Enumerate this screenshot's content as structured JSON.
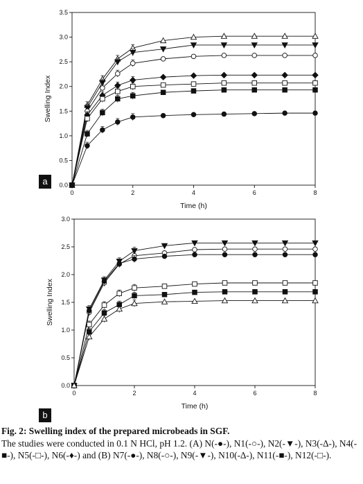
{
  "chart_data": [
    {
      "type": "line",
      "panel_label": "a",
      "xlabel": "Time (h)",
      "ylabel": "Swelling Index",
      "xlim": [
        0,
        8
      ],
      "ylim": [
        0,
        3.5
      ],
      "xticks": [
        "0",
        "2",
        "4",
        "6",
        "8"
      ],
      "yticks": [
        "0.0",
        "0.5",
        "1.0",
        "1.5",
        "2.0",
        "2.5",
        "3.0",
        "3.5"
      ],
      "x": [
        0,
        0.5,
        1,
        1.5,
        2,
        3,
        4,
        5,
        6,
        7,
        8
      ],
      "grid": false,
      "series": [
        {
          "marker": "triangle-open",
          "values": [
            0,
            1.62,
            2.15,
            2.56,
            2.78,
            2.93,
            3.0,
            3.02,
            3.02,
            3.02,
            3.02
          ]
        },
        {
          "marker": "triangle-down-filled",
          "values": [
            0,
            1.57,
            2.08,
            2.5,
            2.69,
            2.76,
            2.84,
            2.84,
            2.84,
            2.84,
            2.84
          ]
        },
        {
          "marker": "circle-open",
          "values": [
            0,
            1.5,
            1.97,
            2.26,
            2.47,
            2.56,
            2.61,
            2.63,
            2.63,
            2.63,
            2.63
          ]
        },
        {
          "marker": "diamond-filled",
          "values": [
            0,
            1.42,
            1.82,
            2.02,
            2.13,
            2.19,
            2.22,
            2.23,
            2.23,
            2.23,
            2.23
          ]
        },
        {
          "marker": "square-open",
          "values": [
            0,
            1.35,
            1.75,
            1.9,
            2.0,
            2.03,
            2.05,
            2.07,
            2.07,
            2.07,
            2.07
          ]
        },
        {
          "marker": "square-filled",
          "values": [
            0,
            1.04,
            1.47,
            1.75,
            1.81,
            1.88,
            1.91,
            1.93,
            1.93,
            1.93,
            1.93
          ]
        },
        {
          "marker": "circle-filled",
          "values": [
            0,
            0.8,
            1.12,
            1.28,
            1.38,
            1.41,
            1.43,
            1.44,
            1.45,
            1.46,
            1.46
          ]
        }
      ]
    },
    {
      "type": "line",
      "panel_label": "b",
      "xlabel": "Time (h)",
      "ylabel": "Swelling Index",
      "xlim": [
        0,
        8
      ],
      "ylim": [
        0,
        3.0
      ],
      "xticks": [
        "0",
        "2",
        "4",
        "6",
        "8"
      ],
      "yticks": [
        "0.0",
        "0.5",
        "1.0",
        "1.5",
        "2.0",
        "2.5",
        "3.0"
      ],
      "x": [
        0,
        0.5,
        1,
        1.5,
        2,
        3,
        4,
        5,
        6,
        7,
        8
      ],
      "grid": false,
      "series": [
        {
          "marker": "triangle-down-filled",
          "values": [
            0,
            1.38,
            1.9,
            2.24,
            2.43,
            2.52,
            2.57,
            2.57,
            2.57,
            2.57,
            2.57
          ]
        },
        {
          "marker": "circle-open",
          "values": [
            0,
            1.32,
            1.85,
            2.19,
            2.34,
            2.39,
            2.45,
            2.46,
            2.46,
            2.46,
            2.46
          ]
        },
        {
          "marker": "circle-filled",
          "values": [
            0,
            1.35,
            1.88,
            2.2,
            2.28,
            2.33,
            2.36,
            2.36,
            2.36,
            2.36,
            2.36
          ]
        },
        {
          "marker": "square-open",
          "values": [
            0,
            1.1,
            1.45,
            1.66,
            1.76,
            1.79,
            1.83,
            1.85,
            1.85,
            1.85,
            1.85
          ]
        },
        {
          "marker": "square-filled",
          "values": [
            0,
            0.97,
            1.31,
            1.46,
            1.62,
            1.64,
            1.68,
            1.69,
            1.69,
            1.69,
            1.69
          ]
        },
        {
          "marker": "triangle-open",
          "values": [
            0,
            0.88,
            1.2,
            1.38,
            1.48,
            1.51,
            1.52,
            1.53,
            1.53,
            1.53,
            1.53
          ]
        }
      ]
    }
  ],
  "caption": {
    "title": "Fig. 2: Swelling index of the prepared microbeads in SGF.",
    "body": "The studies were conducted in 0.1 N HCl, pH 1.2. (A) N(-●-), N1(-○-), N2(-▼-), N3(-∆-), N4(-■-), N5(-□-), N6(-♦-) and (B) N7(-●-), N8(-○-), N9(-▼-), N10(-∆-), N11(-■-), N12(-□-)."
  }
}
